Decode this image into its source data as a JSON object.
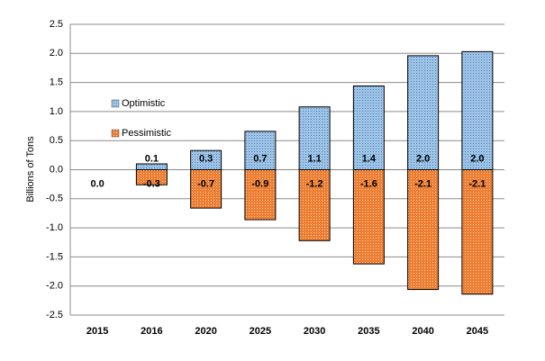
{
  "chart_data": {
    "type": "bar",
    "y_label": "Billions of Tons",
    "categories": [
      "2015",
      "2016",
      "2020",
      "2025",
      "2030",
      "2035",
      "2040",
      "2045"
    ],
    "series": [
      {
        "name": "Optimistic",
        "color": "#9dc3e6",
        "values": [
          0,
          0.1,
          0.33,
          0.66,
          1.08,
          1.44,
          1.96,
          2.03
        ],
        "value_labels": [
          "0.0",
          "0.1",
          "0.3",
          "0.7",
          "1.1",
          "1.4",
          "2.0",
          "2.0"
        ]
      },
      {
        "name": "Pessimistic",
        "color": "#ed7d31",
        "values": [
          0,
          -0.26,
          -0.66,
          -0.86,
          -1.22,
          -1.62,
          -2.06,
          -2.14
        ],
        "value_labels": [
          null,
          "-0.3",
          "-0.7",
          "-0.9",
          "-1.2",
          "-1.6",
          "-2.1",
          "-2.1"
        ]
      }
    ],
    "ylim": [
      -2.5,
      2.5
    ],
    "yticks": [
      {
        "value": -2.5,
        "label": "-2.5"
      },
      {
        "value": -2,
        "label": "-2.0"
      },
      -1.5,
      {
        "value": -1,
        "label": "-1.0"
      },
      -0.5,
      {
        "value": 0,
        "label": "0.0"
      },
      0.5,
      {
        "value": 1,
        "label": "1.0"
      },
      1.5,
      {
        "value": 2,
        "label": "2.0"
      },
      2.5
    ],
    "grid": true,
    "legend": "upper-left"
  }
}
